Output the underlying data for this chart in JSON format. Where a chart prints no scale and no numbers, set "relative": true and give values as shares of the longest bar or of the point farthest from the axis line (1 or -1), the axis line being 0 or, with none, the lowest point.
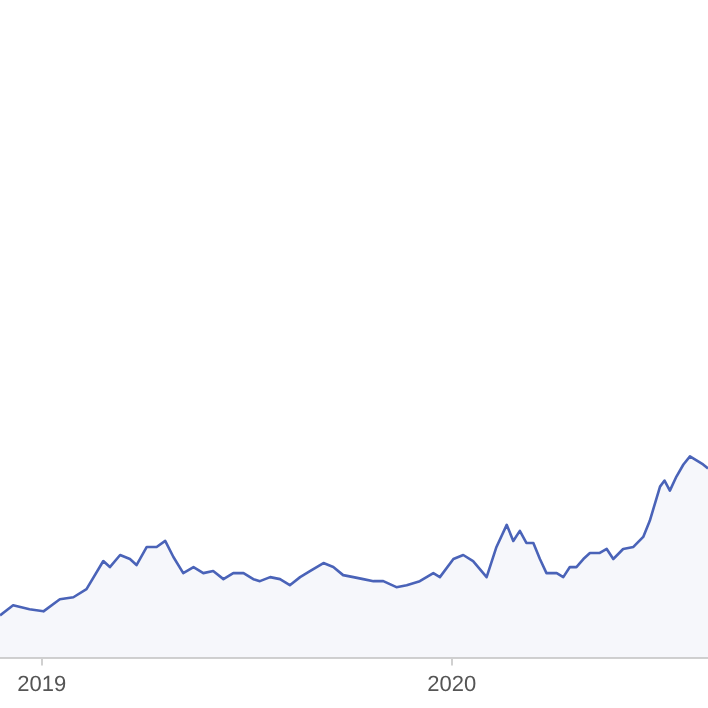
{
  "chart_data": {
    "type": "area",
    "relative": true,
    "xlim": [
      2018.898,
      2020.625
    ],
    "xticks": [
      2019,
      2020
    ],
    "series": [
      {
        "color": "#4a63b8",
        "x": [
          2018.898,
          2018.93,
          2018.97,
          2019.004,
          2019.044,
          2019.077,
          2019.109,
          2019.15,
          2019.166,
          2019.191,
          2019.215,
          2019.231,
          2019.256,
          2019.28,
          2019.301,
          2019.321,
          2019.345,
          2019.37,
          2019.394,
          2019.418,
          2019.443,
          2019.467,
          2019.492,
          2019.516,
          2019.532,
          2019.557,
          2019.581,
          2019.605,
          2019.63,
          2019.654,
          2019.687,
          2019.711,
          2019.735,
          2019.76,
          2019.784,
          2019.809,
          2019.833,
          2019.865,
          2019.89,
          2019.922,
          2019.955,
          2019.971,
          2020.004,
          2020.028,
          2020.052,
          2020.085,
          2020.109,
          2020.134,
          2020.15,
          2020.166,
          2020.182,
          2020.199,
          2020.215,
          2020.231,
          2020.256,
          2020.272,
          2020.288,
          2020.304,
          2020.321,
          2020.337,
          2020.361,
          2020.378,
          2020.394,
          2020.418,
          2020.443,
          2020.467,
          2020.483,
          2020.508,
          2020.519,
          2020.532,
          2020.548,
          2020.565,
          2020.581,
          2020.597,
          2020.613,
          2020.625
        ],
        "values": [
          0.21,
          0.26,
          0.24,
          0.23,
          0.29,
          0.3,
          0.34,
          0.48,
          0.45,
          0.51,
          0.49,
          0.46,
          0.55,
          0.55,
          0.58,
          0.5,
          0.42,
          0.45,
          0.42,
          0.43,
          0.39,
          0.42,
          0.42,
          0.39,
          0.38,
          0.4,
          0.39,
          0.36,
          0.4,
          0.43,
          0.47,
          0.45,
          0.41,
          0.4,
          0.39,
          0.38,
          0.38,
          0.35,
          0.36,
          0.38,
          0.42,
          0.4,
          0.49,
          0.51,
          0.48,
          0.4,
          0.55,
          0.66,
          0.58,
          0.63,
          0.57,
          0.57,
          0.49,
          0.42,
          0.42,
          0.4,
          0.45,
          0.45,
          0.49,
          0.52,
          0.52,
          0.54,
          0.49,
          0.54,
          0.55,
          0.6,
          0.68,
          0.85,
          0.88,
          0.83,
          0.9,
          0.96,
          1,
          0.98,
          0.96,
          0.94
        ]
      }
    ]
  }
}
